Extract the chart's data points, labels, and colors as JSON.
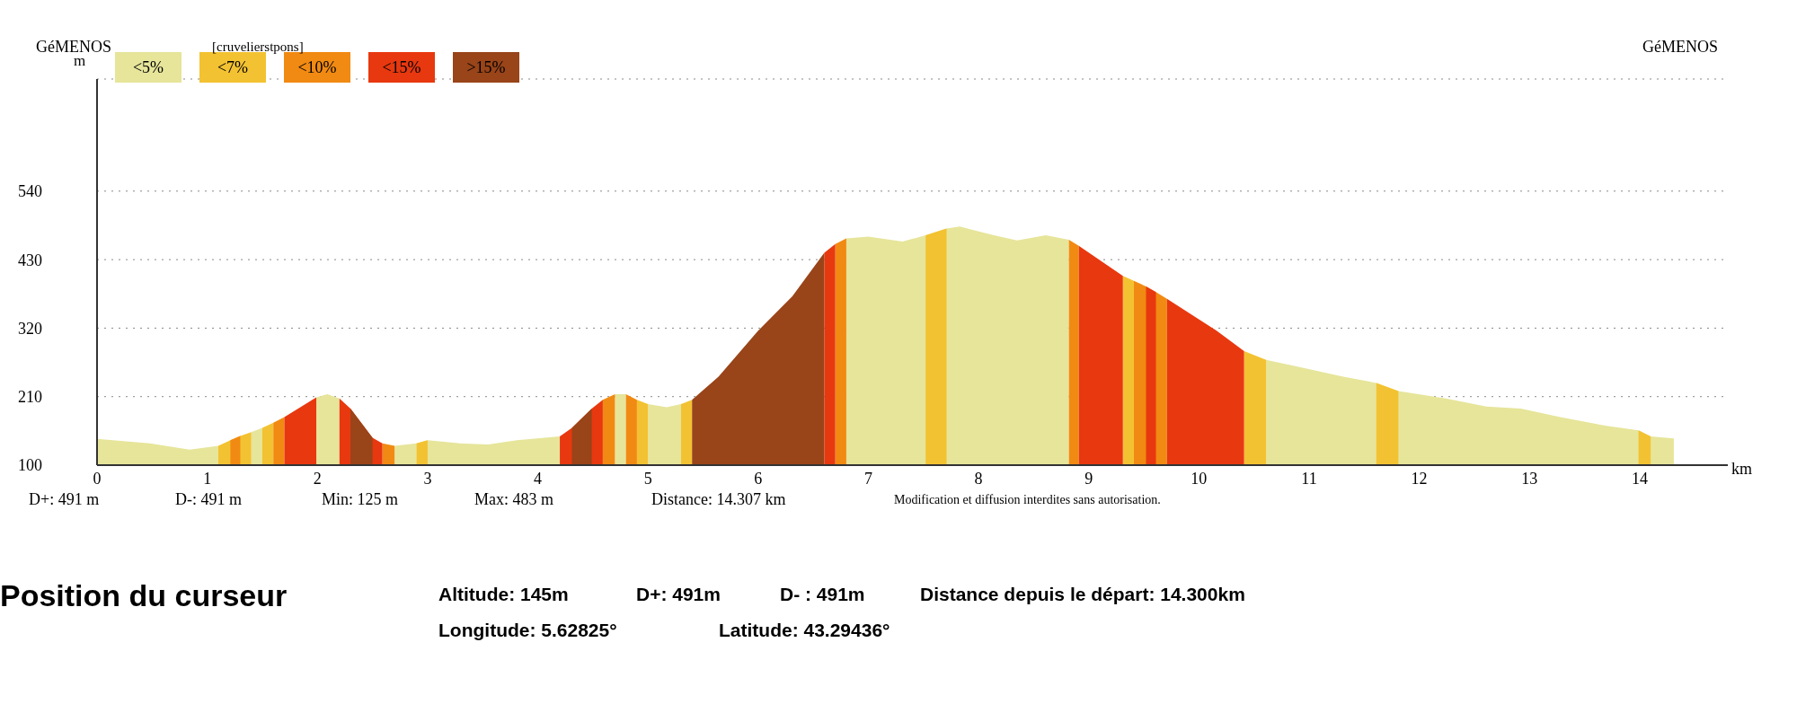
{
  "chart_data": {
    "type": "area",
    "xlabel": "km",
    "ylabel": "m",
    "x": [
      0,
      0.48,
      0.84,
      1.1,
      1.21,
      1.3,
      1.4,
      1.4,
      1.5,
      1.6,
      1.7,
      1.99,
      2.09,
      2.2,
      2.3,
      2.5,
      2.59,
      2.7,
      2.9,
      3.0,
      3.29,
      3.55,
      3.81,
      4.2,
      4.31,
      4.49,
      4.59,
      4.7,
      4.7,
      4.8,
      4.9,
      5.0,
      5.17,
      5.3,
      5.4,
      5.64,
      6.0,
      6.31,
      6.6,
      6.7,
      6.8,
      7.0,
      7.31,
      7.52,
      7.71,
      7.83,
      8.14,
      8.35,
      8.61,
      8.82,
      8.91,
      9.31,
      9.41,
      9.52,
      9.61,
      9.61,
      9.71,
      10.16,
      10.41,
      10.61,
      10.95,
      11.31,
      11.61,
      11.81,
      12.24,
      12.61,
      12.92,
      13.28,
      13.7,
      13.99,
      14.1,
      14.31
    ],
    "series": [
      {
        "name": "<5%",
        "color": "#e6e59a",
        "values": [
          142,
          135,
          125,
          131,
          null,
          null,
          153,
          153,
          160,
          null,
          null,
          209,
          214,
          207,
          null,
          null,
          null,
          131,
          135,
          140,
          135,
          133,
          140,
          146,
          null,
          null,
          null,
          214,
          214,
          214,
          null,
          198,
          193,
          198,
          null,
          null,
          null,
          null,
          null,
          null,
          464,
          467,
          459,
          469,
          480,
          483,
          469,
          461,
          469,
          462,
          null,
          null,
          null,
          null,
          null,
          null,
          null,
          null,
          null,
          269,
          256,
          242,
          232,
          219,
          207,
          194,
          191,
          177,
          163,
          156,
          146,
          143
        ]
      },
      {
        "name": "<7%",
        "color": "#f3c232",
        "values": [
          null,
          null,
          null,
          131,
          140,
          147,
          153,
          null,
          160,
          168,
          null,
          null,
          null,
          null,
          null,
          null,
          null,
          null,
          135,
          140,
          null,
          null,
          null,
          null,
          null,
          null,
          null,
          null,
          null,
          null,
          205,
          198,
          null,
          198,
          205,
          null,
          null,
          null,
          null,
          null,
          null,
          null,
          null,
          469,
          480,
          null,
          null,
          null,
          null,
          null,
          null,
          404,
          396,
          null,
          null,
          null,
          null,
          null,
          283,
          269,
          null,
          null,
          232,
          219,
          null,
          null,
          null,
          null,
          null,
          156,
          146,
          null
        ]
      },
      {
        "name": "<10%",
        "color": "#f18a12",
        "values": [
          null,
          null,
          null,
          null,
          140,
          147,
          null,
          null,
          null,
          168,
          177,
          null,
          null,
          null,
          null,
          null,
          135,
          131,
          null,
          null,
          null,
          null,
          null,
          null,
          null,
          null,
          205,
          214,
          null,
          214,
          205,
          null,
          null,
          null,
          null,
          null,
          null,
          null,
          null,
          455,
          464,
          null,
          null,
          null,
          null,
          null,
          null,
          null,
          null,
          462,
          452,
          null,
          396,
          387,
          378,
          378,
          367,
          null,
          null,
          null,
          null,
          null,
          null,
          null,
          null,
          null,
          null,
          null,
          null,
          null,
          null,
          null
        ]
      },
      {
        "name": "<15%",
        "color": "#e8380f",
        "values": [
          null,
          null,
          null,
          null,
          null,
          null,
          null,
          null,
          null,
          null,
          177,
          209,
          null,
          207,
          191,
          144,
          135,
          null,
          null,
          null,
          null,
          null,
          null,
          146,
          160,
          191,
          205,
          null,
          null,
          null,
          null,
          null,
          null,
          null,
          null,
          null,
          null,
          null,
          441,
          455,
          null,
          null,
          null,
          null,
          null,
          null,
          null,
          null,
          null,
          null,
          452,
          404,
          null,
          387,
          378,
          null,
          367,
          316,
          283,
          null,
          null,
          null,
          null,
          null,
          null,
          null,
          null,
          null,
          null,
          null,
          null,
          null
        ]
      },
      {
        "name": ">15%",
        "color": "#994419",
        "values": [
          null,
          null,
          null,
          null,
          null,
          null,
          null,
          null,
          null,
          null,
          null,
          null,
          null,
          null,
          191,
          144,
          null,
          null,
          null,
          null,
          null,
          null,
          null,
          null,
          160,
          191,
          null,
          null,
          null,
          null,
          null,
          null,
          null,
          null,
          205,
          242,
          316,
          371,
          441,
          null,
          null,
          null,
          null,
          null,
          null,
          null,
          null,
          null,
          null,
          null,
          null,
          null,
          null,
          null,
          null,
          null,
          null,
          null,
          null,
          null,
          null,
          null,
          null,
          null,
          null,
          null,
          null,
          null,
          null,
          null,
          null,
          null
        ]
      }
    ],
    "xlim": [
      0,
      14.8
    ],
    "xticks": [
      0,
      1,
      2,
      3,
      4,
      5,
      6,
      7,
      8,
      9,
      10,
      11,
      12,
      13,
      14
    ],
    "ylim": [
      100,
      720
    ],
    "yticks": [
      100,
      210,
      320,
      430,
      540
    ],
    "grid": "y",
    "legend": "top left",
    "annotations": [
      "GéMENOS",
      "[cruvelierstpons]",
      "GéMENOS",
      "D+: 491 m",
      "D-: 491 m",
      "Min: 125 m",
      "Max: 483 m",
      "Distance: 14.307 km",
      "Modification et diffusion interdites sans autorisation.",
      "Position du curseur",
      "Altitude: 145m",
      "D+: 491m",
      "D- : 491m",
      "Distance depuis le départ: 14.300km",
      "Longitude: 5.62825°",
      "Latitude: 43.29436°"
    ]
  }
}
